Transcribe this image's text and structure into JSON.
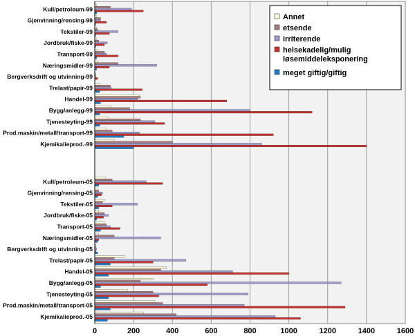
{
  "chart_data": {
    "type": "bar",
    "orientation": "horizontal",
    "xlim": [
      0,
      1600
    ],
    "xticks": [
      "0",
      "200",
      "400",
      "600",
      "800",
      "1000",
      "1200",
      "1400",
      "1600"
    ],
    "grid": true,
    "legend_position": "top-right",
    "groups": [
      {
        "categories": [
          "Kull/petroleum-99",
          "Gjenvinning/rensing-99",
          "Tekstiler-99",
          "Jordbruk/fiske-99",
          "Transport-99",
          "Næringsmidler-99",
          "Bergverksdrift og utvinning-99",
          "Trelast/papir-99",
          "Handel-99",
          "Bygg/anlegg-99",
          "Tjenesteyting-99",
          "Prod.maskin/metall/transport-99",
          "Kjemikalieprod.-99"
        ],
        "series": [
          {
            "name": "Annet",
            "color": "#ffffe0",
            "values": [
              10,
              10,
              10,
              10,
              15,
              15,
              3,
              25,
              230,
              85,
              70,
              60,
              100
            ]
          },
          {
            "name": "etsende",
            "color": "#a87c7c",
            "values": [
              80,
              30,
              15,
              20,
              50,
              120,
              5,
              80,
              235,
              180,
              235,
              90,
              400
            ]
          },
          {
            "name": "irriterende",
            "color": "#9c9ccc",
            "values": [
              190,
              30,
              120,
              65,
              60,
              320,
              5,
              85,
              220,
              800,
              310,
              230,
              860
            ]
          },
          {
            "name": "helsekadelig/mulig løsemiddeleksponering",
            "color": "#c8302c",
            "values": [
              250,
              60,
              75,
              50,
              120,
              75,
              15,
              245,
              680,
              1120,
              360,
              920,
              1400
            ]
          },
          {
            "name": "meget giftig/giftig",
            "color": "#1c7cc8",
            "values": [
              10,
              5,
              5,
              5,
              10,
              10,
              2,
              25,
              30,
              25,
              25,
              150,
              200
            ]
          }
        ]
      },
      {
        "categories": [
          "Kull/petroleum-05",
          "Gjenvinning/rensing-05",
          "Tekstiler-05",
          "Jordbruk/fiske-05",
          "Transport-05",
          "Næringsmidler-05",
          "Bergverksdrift og utvinning-05",
          "Trelast/papir-05",
          "Handel-05",
          "Bygg/anlegg-05",
          "Tjenesteyting-05",
          "Prod.maskin/metall/transport-05",
          "Kjemikalieprod.-05"
        ],
        "series": [
          {
            "name": "Annet",
            "color": "#ffffe0",
            "values": [
              55,
              15,
              50,
              20,
              50,
              20,
              5,
              155,
              370,
              300,
              170,
              310,
              250
            ]
          },
          {
            "name": "etsende",
            "color": "#a87c7c",
            "values": [
              90,
              20,
              40,
              50,
              60,
              100,
              5,
              100,
              340,
              235,
              300,
              350,
              420
            ]
          },
          {
            "name": "irriterende",
            "color": "#9c9ccc",
            "values": [
              265,
              40,
              220,
              70,
              80,
              340,
              10,
              470,
              710,
              1270,
              790,
              770,
              930
            ]
          },
          {
            "name": "helsekadelig/mulig løsemiddeleksponering",
            "color": "#c8302c",
            "values": [
              350,
              35,
              90,
              45,
              130,
              20,
              5,
              300,
              1000,
              580,
              330,
              1290,
              1060
            ]
          },
          {
            "name": "meget giftig/giftig",
            "color": "#1c7cc8",
            "values": [
              20,
              15,
              20,
              10,
              30,
              15,
              15,
              80,
              70,
              30,
              70,
              80,
              65
            ]
          }
        ]
      }
    ]
  }
}
